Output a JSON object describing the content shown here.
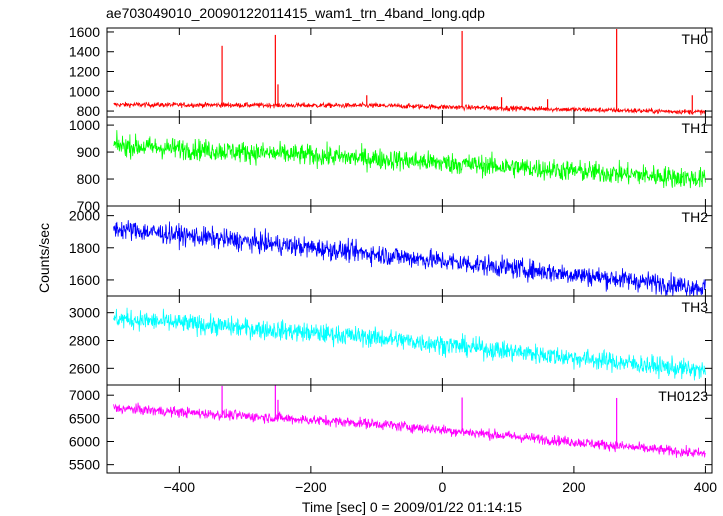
{
  "chart_data": {
    "title": "ae703049010_20090122011415_wam1_trn_4band_long.qdp",
    "type": "line",
    "xlabel": "Time [sec] 0 = 2009/01/22 01:14:15",
    "ylabel": "Counts/sec",
    "xlim": [
      -510,
      410
    ],
    "xticks": [
      -400,
      -200,
      0,
      200,
      400
    ],
    "xtick_labels": [
      "−400",
      "−200",
      "0",
      "200",
      "400"
    ],
    "grid": false,
    "panels": [
      {
        "name": "TH0",
        "color": "#ff0000",
        "ylim": [
          740,
          1640
        ],
        "yticks": [
          800,
          1000,
          1200,
          1400,
          1600
        ],
        "ytick_labels": [
          "800",
          "1000",
          "1200",
          "1400",
          "1600"
        ],
        "trend": [
          [
            -500,
            865
          ],
          [
            -100,
            855
          ],
          [
            400,
            790
          ]
        ],
        "noise": 18,
        "spikes": [
          [
            -335,
            1460
          ],
          [
            -254,
            1570
          ],
          [
            -250,
            1070
          ],
          [
            -115,
            960
          ],
          [
            30,
            1610
          ],
          [
            90,
            940
          ],
          [
            160,
            920
          ],
          [
            265,
            1630
          ],
          [
            380,
            960
          ]
        ]
      },
      {
        "name": "TH1",
        "color": "#00ff00",
        "ylim": [
          700,
          1030
        ],
        "yticks": [
          700,
          800,
          900,
          1000
        ],
        "ytick_labels": [
          "700",
          "800",
          "900",
          "1000"
        ],
        "trend": [
          [
            -500,
            925
          ],
          [
            -100,
            875
          ],
          [
            400,
            800
          ]
        ],
        "noise": 28,
        "spikes": []
      },
      {
        "name": "TH2",
        "color": "#0000ff",
        "ylim": [
          1500,
          2060
        ],
        "yticks": [
          1600,
          1800,
          2000
        ],
        "ytick_labels": [
          "1600",
          "1800",
          "2000"
        ],
        "trend": [
          [
            -500,
            1920
          ],
          [
            -100,
            1760
          ],
          [
            400,
            1550
          ]
        ],
        "noise": 45,
        "spikes": []
      },
      {
        "name": "TH3",
        "color": "#00ffff",
        "ylim": [
          2480,
          3120
        ],
        "yticks": [
          2600,
          2800,
          3000
        ],
        "ytick_labels": [
          "2600",
          "2800",
          "3000"
        ],
        "trend": [
          [
            -500,
            2960
          ],
          [
            -100,
            2820
          ],
          [
            400,
            2580
          ]
        ],
        "noise": 50,
        "spikes": []
      },
      {
        "name": "TH0123",
        "color": "#ff00ff",
        "ylim": [
          5320,
          7220
        ],
        "yticks": [
          5500,
          6000,
          6500,
          7000
        ],
        "ytick_labels": [
          "5500",
          "6000",
          "6500",
          "7000"
        ],
        "trend": [
          [
            -500,
            6720
          ],
          [
            -100,
            6380
          ],
          [
            400,
            5730
          ]
        ],
        "noise": 80,
        "spikes": [
          [
            -335,
            7200
          ],
          [
            -254,
            7210
          ],
          [
            -250,
            6900
          ],
          [
            30,
            6950
          ],
          [
            265,
            6940
          ]
        ]
      }
    ]
  }
}
